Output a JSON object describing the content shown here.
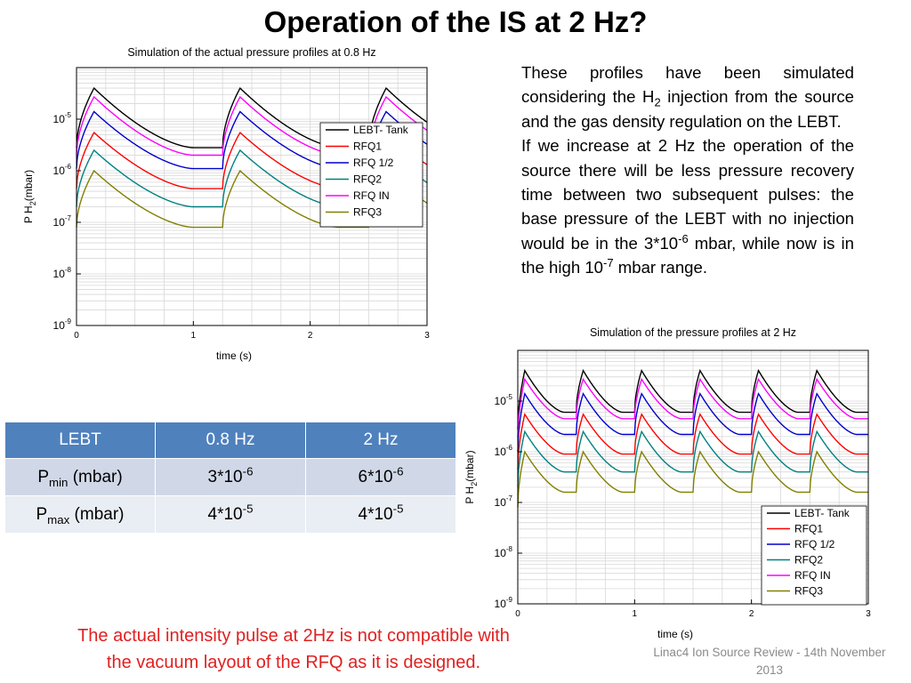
{
  "slide": {
    "title": "Operation of the IS at 2 Hz?",
    "paragraph1": {
      "before_h2": "These profiles have been simulated considering the H",
      "h2_sub": "2",
      "after_h2": " injection from the source and the gas density regulation on the LEBT."
    },
    "paragraph2": {
      "part1": "If we increase at 2 Hz the operation of the source there will be less pressure recovery time between two subsequent pulses: the base pressure of the LEBT with no injection would be in the 3*10",
      "sup1": "-6",
      "part2": " mbar, while now is in the high 10",
      "sup2": "-7",
      "part3": " mbar range."
    },
    "footer_warning_line1": "The actual intensity pulse at 2Hz is not compatible with",
    "footer_warning_line2": "the vacuum layout of the RFQ as it is designed.",
    "footer_credit_line1": "Linac4 Ion Source Review - 14th November",
    "footer_credit_line2": "2013"
  },
  "table": {
    "headers": [
      "LEBT",
      "0.8 Hz",
      "2 Hz"
    ],
    "rows": [
      {
        "label_main": "P",
        "label_sub": "min",
        "label_unit": " (mbar)",
        "c1_base": "3*10",
        "c1_sup": "-6",
        "c2_base": "6*10",
        "c2_sup": "-6"
      },
      {
        "label_main": "P",
        "label_sub": "max",
        "label_unit": " (mbar)",
        "c1_base": "4*10",
        "c1_sup": "-5",
        "c2_base": "4*10",
        "c2_sup": "-5"
      }
    ]
  },
  "chart_data": [
    {
      "type": "line",
      "title": "Simulation of the actual pressure profiles at 0.8 Hz",
      "xlabel": "time (s)",
      "ylabel_main": "P H",
      "ylabel_sub": "2",
      "ylabel_unit": "(mbar)",
      "xlim": [
        0,
        3
      ],
      "ylim": [
        1e-09,
        0.0001
      ],
      "yscale": "log",
      "xticks": [
        "0",
        "1",
        "2",
        "3"
      ],
      "ytick_exponents": [
        "-9",
        "-8",
        "-7",
        "-6",
        "-5"
      ],
      "ytick_base": "10",
      "grid": true,
      "legend_position": "right",
      "period": 1.25,
      "series": [
        {
          "name": "LEBT- Tank",
          "color": "#000000",
          "base": 2.8e-06,
          "peak": 4e-05,
          "start": 2.8e-06
        },
        {
          "name": "RFQ1",
          "color": "#ff0000",
          "base": 4.5e-07,
          "peak": 5.5e-06,
          "start": 4.5e-07
        },
        {
          "name": "RFQ 1/2",
          "color": "#0000cc",
          "base": 1.1e-06,
          "peak": 1.4e-05,
          "start": 1e-06
        },
        {
          "name": "RFQ2",
          "color": "#008080",
          "base": 2e-07,
          "peak": 2.5e-06,
          "start": 2e-07
        },
        {
          "name": "RFQ IN",
          "color": "#ff00ff",
          "base": 2e-06,
          "peak": 2.7e-05,
          "start": 1.9e-06
        },
        {
          "name": "RFQ3",
          "color": "#808000",
          "base": 8e-08,
          "peak": 1e-06,
          "start": 8e-08
        }
      ]
    },
    {
      "type": "line",
      "title": "Simulation of the  pressure profiles at 2 Hz",
      "xlabel": "time (s)",
      "ylabel_main": "P H",
      "ylabel_sub": "2",
      "ylabel_unit": "(mbar)",
      "xlim": [
        0,
        3
      ],
      "ylim": [
        1e-09,
        0.0001
      ],
      "yscale": "log",
      "xticks": [
        "0",
        "1",
        "2",
        "3"
      ],
      "ytick_exponents": [
        "-9",
        "-8",
        "-7",
        "-6",
        "-5"
      ],
      "ytick_base": "10",
      "grid": true,
      "legend_position": "bottom-right",
      "period": 0.5,
      "series": [
        {
          "name": "LEBT- Tank",
          "color": "#000000",
          "base": 6e-06,
          "peak": 4e-05,
          "start": 2.8e-06
        },
        {
          "name": "RFQ1",
          "color": "#ff0000",
          "base": 9e-07,
          "peak": 5.5e-06,
          "start": 4.5e-07
        },
        {
          "name": "RFQ 1/2",
          "color": "#0000cc",
          "base": 2.2e-06,
          "peak": 1.4e-05,
          "start": 1e-06
        },
        {
          "name": "RFQ2",
          "color": "#008080",
          "base": 4e-07,
          "peak": 2.5e-06,
          "start": 2e-07
        },
        {
          "name": "RFQ IN",
          "color": "#ff00ff",
          "base": 4.5e-06,
          "peak": 2.7e-05,
          "start": 1.9e-06
        },
        {
          "name": "RFQ3",
          "color": "#808000",
          "base": 1.6e-07,
          "peak": 1e-06,
          "start": 8e-08
        }
      ]
    }
  ]
}
